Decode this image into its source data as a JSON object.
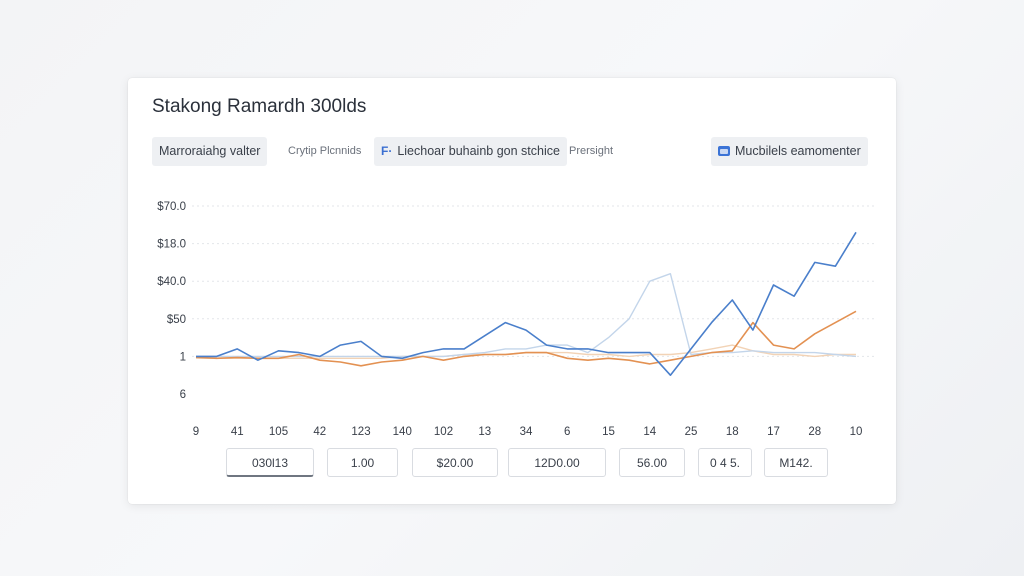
{
  "title": "Stakong Ramardh 300lds",
  "toolbar": {
    "filter_button": "Marroraiahg valter",
    "filter_link": "Crytip Plcnnids",
    "sort_button": "Liechoar buhainb gon stchice",
    "preset_link": "Prersight",
    "mode_button": "Mucbilels eamomenter",
    "sort_icon_glyph": "F·"
  },
  "icons": {
    "sort_icon": "filter-icon",
    "mode_icon": "window-icon"
  },
  "colors": {
    "series_blue": "#4a7fcb",
    "series_orange": "#e39152",
    "series_lightblue": "#c3d5ea",
    "series_peach": "#f2d3b6",
    "grid": "#e3e6ea"
  },
  "footer_values": [
    "030l13",
    "1.00",
    "$20.00",
    "12D0.00",
    "56.00",
    "0 4 5.",
    "M142."
  ],
  "chart_data": {
    "type": "line",
    "y_tick_labels": [
      "$70.0",
      "$18.0",
      "$40.0",
      "$50",
      "1",
      "6"
    ],
    "x_tick_labels": [
      "9",
      "41",
      "105",
      "42",
      "123",
      "140",
      "102",
      "13",
      "34",
      "6",
      "15",
      "14",
      "25",
      "18",
      "17",
      "28",
      "10"
    ],
    "y_tick_values": [
      6,
      5,
      4,
      3,
      2,
      1
    ],
    "ylim": [
      1,
      6
    ],
    "grid": true,
    "x": [
      0,
      0.5,
      1,
      1.5,
      2,
      2.5,
      3,
      3.5,
      4,
      4.5,
      5,
      5.5,
      6,
      6.5,
      7,
      7.5,
      8,
      8.5,
      9,
      9.5,
      10,
      10.5,
      11,
      11.5,
      12,
      12.5,
      13,
      13.5,
      14,
      14.5,
      15,
      15.5,
      16
    ],
    "series": [
      {
        "values": [
          2.0,
          2.0,
          2.2,
          1.9,
          2.15,
          2.1,
          2.0,
          2.3,
          2.4,
          2.0,
          1.95,
          2.1,
          2.2,
          2.2,
          2.55,
          2.9,
          2.7,
          2.3,
          2.2,
          2.2,
          2.1,
          2.1,
          2.1,
          1.5,
          2.2,
          2.9,
          3.5,
          2.7,
          3.9,
          3.6,
          4.5,
          4.4,
          5.3
        ]
      },
      {
        "values": [
          1.98,
          1.95,
          1.97,
          1.95,
          1.95,
          2.05,
          1.9,
          1.85,
          1.75,
          1.85,
          1.9,
          2.0,
          1.9,
          2.0,
          2.05,
          2.05,
          2.1,
          2.1,
          1.95,
          1.9,
          1.95,
          1.9,
          1.8,
          1.9,
          2.0,
          2.1,
          2.15,
          2.9,
          2.3,
          2.2,
          2.6,
          2.9,
          3.2
        ]
      },
      {
        "values": [
          2.0,
          2.0,
          2.0,
          2.0,
          2.0,
          2.0,
          2.0,
          2.0,
          2.0,
          2.0,
          2.0,
          2.0,
          2.0,
          2.05,
          2.1,
          2.2,
          2.2,
          2.3,
          2.3,
          2.1,
          2.5,
          3.0,
          4.0,
          4.2,
          2.05,
          2.1,
          2.1,
          2.15,
          2.1,
          2.1,
          2.1,
          2.05,
          2.0
        ]
      },
      {
        "values": [
          1.95,
          1.95,
          1.95,
          1.95,
          1.95,
          1.95,
          1.95,
          1.95,
          1.95,
          1.95,
          2.0,
          2.0,
          2.0,
          2.05,
          2.05,
          2.05,
          2.1,
          2.1,
          2.1,
          2.05,
          2.05,
          2.0,
          2.05,
          2.05,
          2.1,
          2.2,
          2.3,
          2.15,
          2.05,
          2.05,
          2.0,
          2.05,
          2.05
        ]
      }
    ]
  }
}
